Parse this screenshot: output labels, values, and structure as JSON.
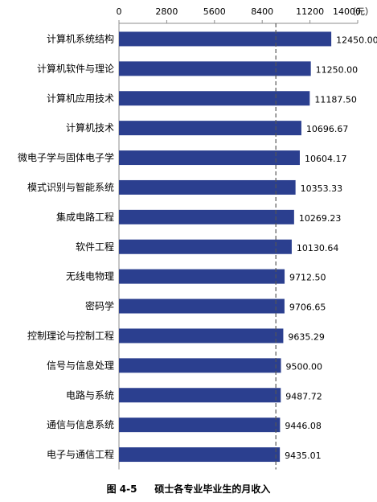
{
  "chart_data": {
    "type": "bar",
    "orientation": "horizontal",
    "categories": [
      "计算机系统结构",
      "计算机软件与理论",
      "计算机应用技术",
      "计算机技术",
      "微电子学与固体电子学",
      "模式识别与智能系统",
      "集成电路工程",
      "软件工程",
      "无线电物理",
      "密码学",
      "控制理论与控制工程",
      "信号与信息处理",
      "电路与系统",
      "通信与信息系统",
      "电子与通信工程"
    ],
    "values": [
      12450.0,
      11250.0,
      11187.5,
      10696.67,
      10604.17,
      10353.33,
      10269.23,
      10130.64,
      9712.5,
      9706.65,
      9635.29,
      9500.0,
      9487.72,
      9446.08,
      9435.01
    ],
    "value_labels": [
      "12450.00",
      "11250.00",
      "11187.50",
      "10696.67",
      "10604.17",
      "10353.33",
      "10269.23",
      "10130.64",
      "9712.50",
      "9706.65",
      "9635.29",
      "9500.00",
      "9487.72",
      "9446.08",
      "9435.01"
    ],
    "xticks": [
      "0",
      "2800",
      "5600",
      "8400",
      "11200",
      "14000"
    ],
    "xunit": "（元）",
    "xlim": [
      0,
      14000
    ],
    "reference_line_value": 9200,
    "axis_position": "top",
    "bar_color": "#2b3f8f"
  },
  "caption": {
    "figure_number": "图 4-5",
    "title": "硕士各专业毕业生的月收入"
  }
}
